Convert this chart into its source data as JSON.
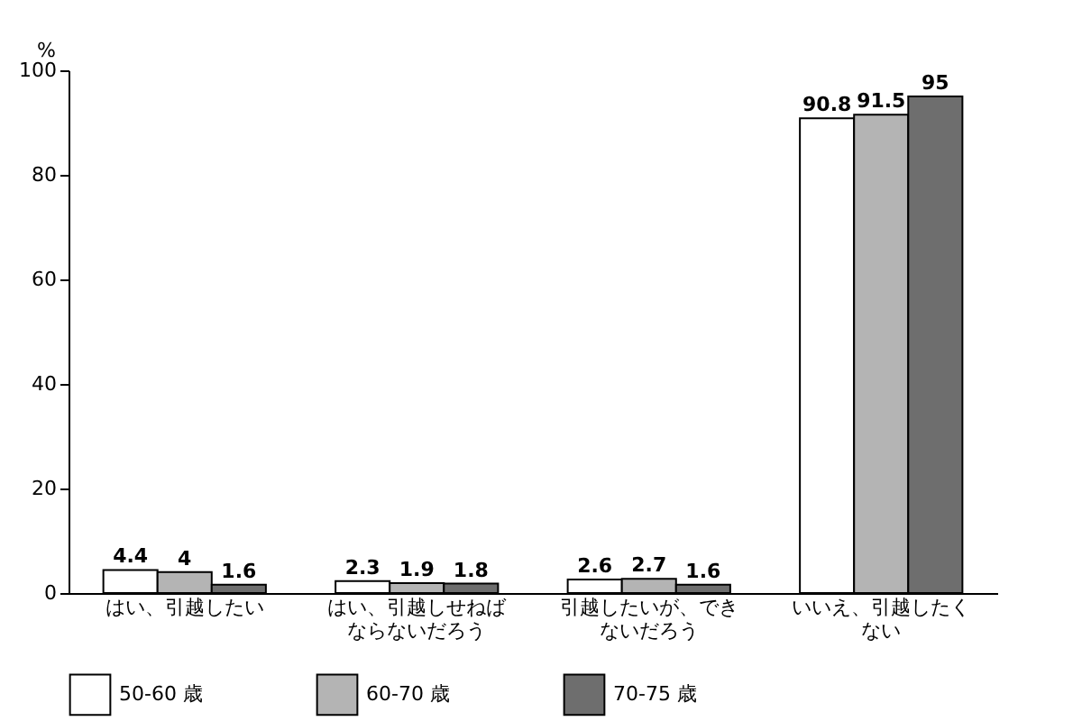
{
  "chart_data": {
    "type": "bar",
    "ylabel": "%",
    "categories": [
      "はい、引越したい",
      "はい、引越しせねばならないだろう",
      "引越したいが、できないだろう",
      "いいえ、引越したくない"
    ],
    "series": [
      {
        "name": "50-60 歳",
        "color": "#ffffff",
        "values": [
          4.4,
          2.3,
          2.6,
          90.8
        ]
      },
      {
        "name": "60-70 歳",
        "color": "#b4b4b4",
        "values": [
          4,
          1.9,
          2.7,
          91.5
        ]
      },
      {
        "name": "70-75 歳",
        "color": "#6e6e6e",
        "values": [
          1.6,
          1.8,
          1.6,
          95
        ]
      }
    ],
    "ylim": [
      0,
      100
    ],
    "yticks": [
      0,
      20,
      40,
      60,
      80,
      100
    ],
    "grid": false,
    "legend": "bottom",
    "data_labels": true
  }
}
